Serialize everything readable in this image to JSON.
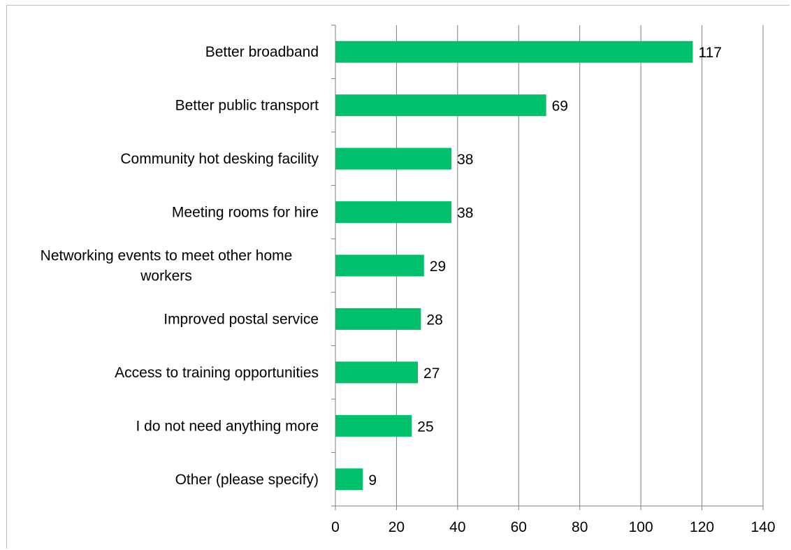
{
  "chart_data": {
    "type": "bar",
    "orientation": "horizontal",
    "title": "",
    "xlabel": "",
    "ylabel": "",
    "categories": [
      "Better broadband",
      "Better public transport",
      "Community hot desking facility",
      "Meeting rooms for hire",
      "Networking events to meet other home workers",
      "Improved postal service",
      "Access to training opportunities",
      "I do not need anything more",
      "Other (please specify)"
    ],
    "category_lines": [
      [
        "Better broadband"
      ],
      [
        "Better public transport"
      ],
      [
        "Community hot desking facility"
      ],
      [
        "Meeting rooms for hire"
      ],
      [
        "Networking events to meet other home",
        "workers"
      ],
      [
        "Improved postal service"
      ],
      [
        "Access to training opportunities"
      ],
      [
        "I do not need anything more"
      ],
      [
        "Other (please specify)"
      ]
    ],
    "values": [
      117,
      69,
      38,
      38,
      29,
      28,
      27,
      25,
      9
    ],
    "data_labels": [
      "117",
      "69",
      "38",
      "38",
      "29",
      "28",
      "27",
      "25",
      "9"
    ],
    "xlim": [
      0,
      140
    ],
    "xticks": [
      0,
      20,
      40,
      60,
      80,
      100,
      120,
      140
    ],
    "xtick_labels": [
      "0",
      "20",
      "40",
      "60",
      "80",
      "100",
      "120",
      "140"
    ],
    "grid": "vertical",
    "legend": "none",
    "colors": {
      "bar": "#00c06b",
      "grid": "#7f7f7f",
      "axis": "#7f7f7f",
      "frame": "#bfbfbf"
    }
  }
}
